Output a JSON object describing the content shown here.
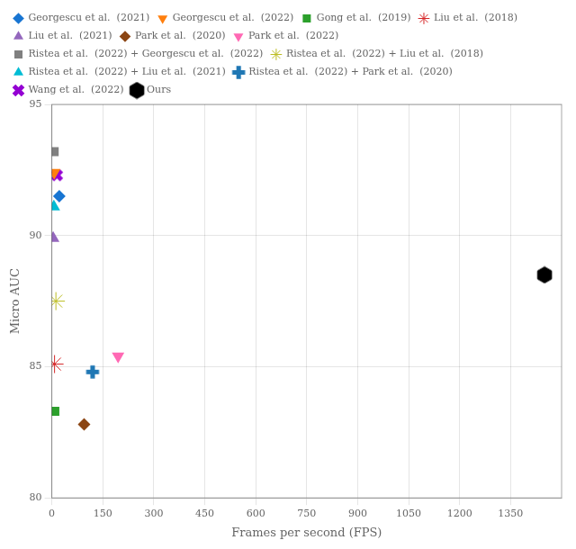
{
  "chart_data": {
    "type": "scatter",
    "xlabel": "Frames per second (FPS)",
    "ylabel": "Micro AUC",
    "series": [
      {
        "name": "Georgescu et al.  (2021)",
        "x": [
          22
        ],
        "values": [
          91.5
        ],
        "color": "#1875d2",
        "marker": "diamond"
      },
      {
        "name": "Georgescu et al.  (2022)",
        "x": [
          7
        ],
        "values": [
          92.4
        ],
        "color": "#ff7f0e",
        "marker": "triangle_down"
      },
      {
        "name": "Gong et al.  (2019)",
        "x": [
          9
        ],
        "values": [
          83.3
        ],
        "color": "#2ca02c",
        "marker": "square"
      },
      {
        "name": "Liu et al.  (2018)",
        "x": [
          8
        ],
        "values": [
          85.1
        ],
        "color": "#d62728",
        "marker": "star"
      },
      {
        "name": "Liu et al.  (2021)",
        "x": [
          4
        ],
        "values": [
          89.9
        ],
        "color": "#9467bd",
        "marker": "triangle_up"
      },
      {
        "name": "Park et al.  (2020)",
        "x": [
          95
        ],
        "values": [
          82.8
        ],
        "color": "#8B4513",
        "marker": "diamond"
      },
      {
        "name": "Park et al.  (2022)",
        "x": [
          195
        ],
        "values": [
          85.4
        ],
        "color": "#ff69b4",
        "marker": "triangle_down"
      },
      {
        "name": "Ristea et al.  (2022) + Georgescu et al.  (2022)",
        "x": [
          7
        ],
        "values": [
          93.2
        ],
        "color": "#808080",
        "marker": "square"
      },
      {
        "name": "Ristea et al.  (2022) + Liu et al.  (2018)",
        "x": [
          12
        ],
        "values": [
          87.5
        ],
        "color": "#bcbd22",
        "marker": "star"
      },
      {
        "name": "Ristea et al.  (2022) + Liu et al.  (2021)",
        "x": [
          6
        ],
        "values": [
          91.1
        ],
        "color": "#00bcd4",
        "marker": "triangle_up"
      },
      {
        "name": "Ristea et al.  (2022) + Park et al.  (2020)",
        "x": [
          120
        ],
        "values": [
          84.8
        ],
        "color": "#1f77b4",
        "marker": "plus"
      },
      {
        "name": "Wang et al.  (2022)",
        "x": [
          15
        ],
        "values": [
          92.3
        ],
        "color": "#9400d3",
        "marker": "x"
      },
      {
        "name": "Ours",
        "x": [
          1450
        ],
        "values": [
          88.5
        ],
        "color": "#000000",
        "marker": "hexagon"
      }
    ],
    "xlim": [
      0,
      1500
    ],
    "ylim": [
      80,
      95
    ],
    "xticks": [
      0,
      150,
      300,
      450,
      600,
      750,
      900,
      1050,
      1200,
      1350
    ],
    "yticks": [
      80,
      85,
      90,
      95
    ],
    "grid": true,
    "legend": "top"
  }
}
